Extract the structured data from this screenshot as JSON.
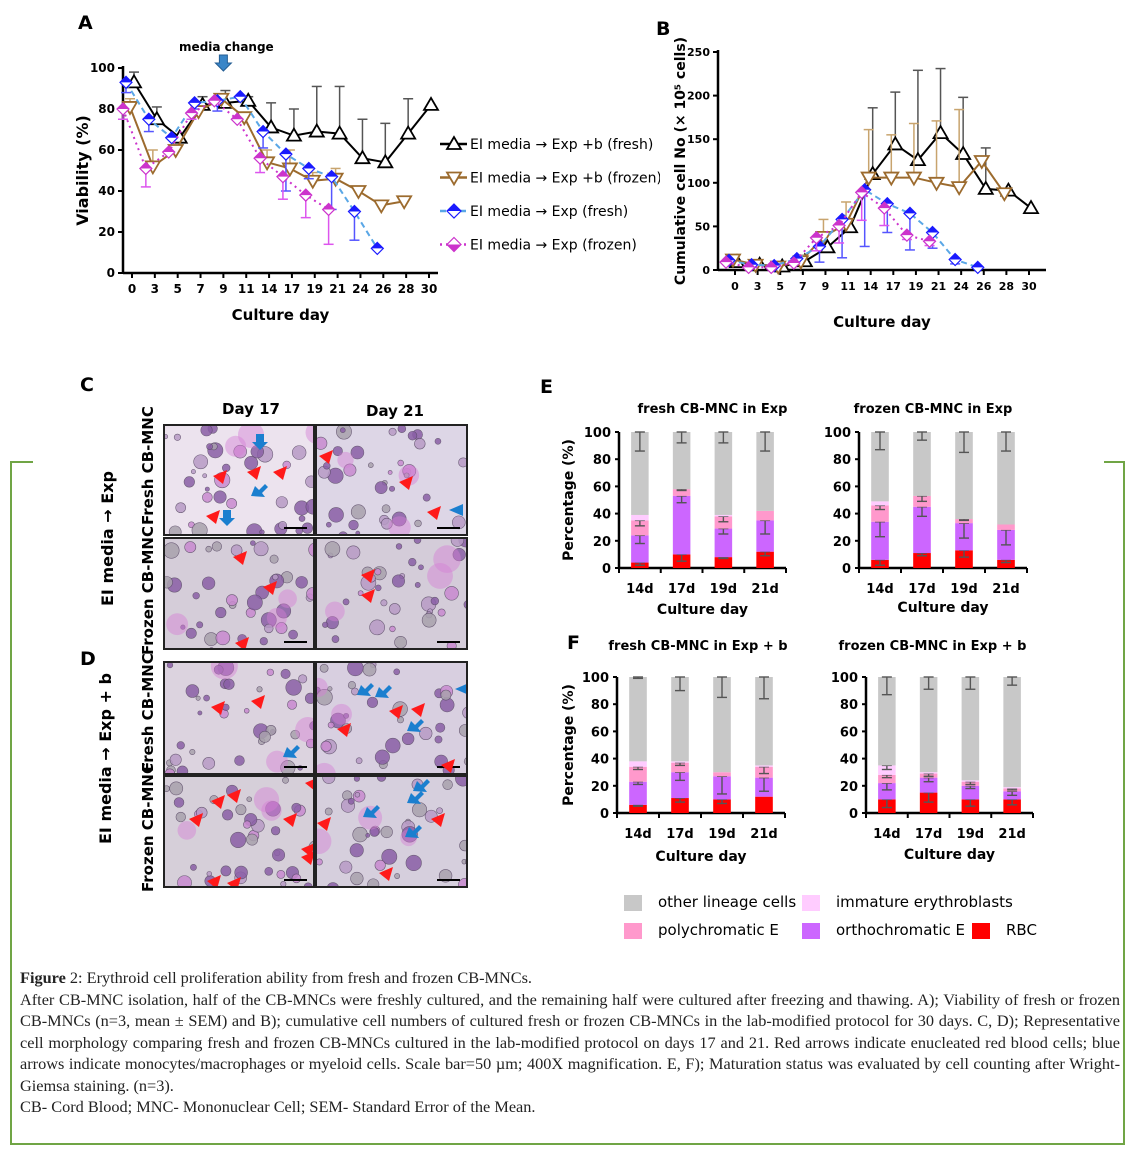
{
  "panels": {
    "A": {
      "letter": "A"
    },
    "B": {
      "letter": "B"
    },
    "C": {
      "letter": "C"
    },
    "D": {
      "letter": "D"
    },
    "E": {
      "letter": "E"
    },
    "F": {
      "letter": "F"
    }
  },
  "micrographs": {
    "col_labels": [
      "Day 17",
      "Day 21"
    ],
    "C_group": "EI media → Exp",
    "D_group": "EI media → Exp + b",
    "row_labels": [
      "Fresh CB-MNC",
      "Frozen CB-MNC",
      "Fresh CB-MNC",
      "Frozen CB-MNC"
    ]
  },
  "legend_lineage": [
    {
      "label": "other lineage cells",
      "color": "#c8c8c8"
    },
    {
      "label": "immature erythroblasts",
      "color": "#ffccff"
    },
    {
      "label": "polychromatic E",
      "color": "#ff99cc"
    },
    {
      "label": "orthochromatic E",
      "color": "#cc66ff"
    },
    {
      "label": "RBC",
      "color": "#ff0000"
    }
  ],
  "chart_data": [
    {
      "id": "A",
      "type": "line",
      "title": "",
      "annotation": "media change",
      "annotation_x": 9,
      "xlabel": "Culture day",
      "ylabel": "Viability (%)",
      "x_ticks": [
        0,
        3,
        5,
        7,
        9,
        11,
        14,
        17,
        19,
        21,
        24,
        26,
        28,
        30
      ],
      "ylim": [
        0,
        100
      ],
      "y_ticks": [
        0,
        20,
        40,
        60,
        80,
        100
      ],
      "legend_position": "right",
      "series": [
        {
          "name": "EI media → Exp +b (fresh)",
          "color": "#000000",
          "marker": "triangle-up",
          "dash": "solid",
          "values": [
            93,
            75,
            66,
            82,
            83,
            84,
            71,
            67,
            69,
            68,
            56,
            54,
            68,
            82
          ],
          "err": [
            5,
            6,
            0,
            4,
            6,
            2,
            12,
            13,
            22,
            23,
            19,
            19,
            17,
            0
          ]
        },
        {
          "name": "EI media → Exp +b (frozen)",
          "color": "#9c6b2e",
          "marker": "triangle-down",
          "dash": "solid",
          "values": [
            81,
            52,
            60,
            79,
            85,
            76,
            54,
            51,
            45,
            46,
            40,
            33,
            35,
            null
          ],
          "err": [
            4,
            8,
            0,
            0,
            0,
            0,
            6,
            9,
            4,
            5,
            0,
            0,
            0,
            null
          ]
        },
        {
          "name": "EI media → Exp (fresh)",
          "color": "#1a1aff",
          "line_color": "#5aa7e6",
          "marker": "diamond-half",
          "dash": "dashed",
          "values": [
            93,
            75,
            66,
            83,
            84,
            86,
            69,
            58,
            51,
            47,
            30,
            12,
            null,
            null
          ],
          "err": [
            5,
            6,
            0,
            3,
            5,
            0,
            8,
            18,
            5,
            16,
            14,
            0,
            null,
            null
          ]
        },
        {
          "name": "EI media → Exp (frozen)",
          "color": "#cc33cc",
          "marker": "diamond-half",
          "dash": "dotted",
          "values": [
            80,
            51,
            59,
            78,
            84,
            75,
            56,
            47,
            38,
            31,
            null,
            null,
            null,
            null
          ],
          "err": [
            5,
            9,
            0,
            3,
            0,
            0,
            7,
            11,
            11,
            17,
            null,
            null,
            null,
            null
          ]
        }
      ]
    },
    {
      "id": "B",
      "type": "line",
      "title": "",
      "xlabel": "Culture day",
      "ylabel": "Cumulative cell No (× 10⁵ cells)",
      "x_ticks": [
        0,
        3,
        5,
        7,
        9,
        11,
        14,
        17,
        19,
        21,
        24,
        26,
        28,
        30
      ],
      "ylim": [
        0,
        250
      ],
      "y_ticks": [
        0,
        50,
        100,
        150,
        200,
        250
      ],
      "series": [
        {
          "name": "EI media → Exp +b (fresh)",
          "color": "#000000",
          "marker": "triangle-up",
          "dash": "solid",
          "values": [
            9,
            6,
            4,
            10,
            26,
            49,
            110,
            144,
            126,
            157,
            133,
            93,
            91,
            71
          ],
          "err": [
            0,
            0,
            0,
            0,
            0,
            0,
            76,
            60,
            103,
            74,
            65,
            47,
            0,
            0
          ]
        },
        {
          "name": "EI media → Exp +b (frozen)",
          "color": "#9c6b2e",
          "marker": "triangle-down",
          "dash": "solid",
          "values": [
            12,
            6,
            4,
            10,
            38,
            53,
            106,
            106,
            106,
            100,
            95,
            125,
            88,
            null
          ],
          "err": [
            0,
            0,
            0,
            7,
            20,
            25,
            55,
            49,
            62,
            71,
            89,
            5,
            0,
            null
          ]
        },
        {
          "name": "EI media → Exp (fresh)",
          "color": "#1a1aff",
          "line_color": "#5aa7e6",
          "marker": "diamond-half",
          "dash": "dashed",
          "values": [
            11,
            6,
            5,
            13,
            27,
            58,
            92,
            76,
            65,
            43,
            12,
            3,
            null,
            null
          ],
          "err": [
            0,
            0,
            0,
            0,
            18,
            44,
            65,
            33,
            42,
            18,
            5,
            0,
            null,
            null
          ]
        },
        {
          "name": "EI media → Exp (frozen)",
          "color": "#cc33cc",
          "marker": "diamond-half",
          "dash": "dotted",
          "values": [
            9,
            3,
            3,
            8,
            37,
            51,
            89,
            71,
            40,
            33,
            null,
            null,
            null,
            null
          ],
          "err": [
            0,
            0,
            0,
            0,
            15,
            20,
            32,
            20,
            5,
            5,
            null,
            null,
            null,
            null
          ]
        }
      ]
    },
    {
      "id": "E1",
      "type": "bar",
      "stacked": true,
      "title": "fresh CB-MNC in Exp",
      "xlabel": "Culture day",
      "ylabel": "Percentage (%)",
      "categories": [
        "14d",
        "17d",
        "19d",
        "21d"
      ],
      "ylim": [
        0,
        100
      ],
      "y_ticks": [
        0,
        20,
        40,
        60,
        80,
        100
      ],
      "series": [
        {
          "name": "RBC",
          "values": [
            4,
            10,
            8,
            12
          ],
          "err": [
            2,
            5,
            1,
            3
          ]
        },
        {
          "name": "orthochromatic E",
          "values": [
            20,
            43,
            21,
            23
          ],
          "err": [
            6,
            5,
            4,
            10
          ]
        },
        {
          "name": "polychromatic E",
          "values": [
            11,
            5,
            9,
            7
          ],
          "err": [
            4,
            1,
            4,
            0
          ]
        },
        {
          "name": "immature erythroblasts",
          "values": [
            4,
            0,
            1,
            0
          ],
          "err": [
            0,
            0,
            0,
            0
          ]
        },
        {
          "name": "other lineage cells",
          "values": [
            61,
            42,
            61,
            58
          ],
          "err": [
            14,
            8,
            8,
            14
          ]
        }
      ]
    },
    {
      "id": "E2",
      "type": "bar",
      "stacked": true,
      "title": "frozen CB-MNC in Exp",
      "xlabel": "Culture day",
      "ylabel": "",
      "categories": [
        "14d",
        "17d",
        "19d",
        "21d"
      ],
      "ylim": [
        0,
        100
      ],
      "y_ticks": [
        0,
        20,
        40,
        60,
        80,
        100
      ],
      "series": [
        {
          "name": "RBC",
          "values": [
            6,
            11,
            13,
            6
          ],
          "err": [
            4,
            2,
            5,
            2
          ]
        },
        {
          "name": "orthochromatic E",
          "values": [
            28,
            34,
            20,
            22
          ],
          "err": [
            11,
            7,
            11,
            11
          ]
        },
        {
          "name": "polychromatic E",
          "values": [
            12,
            8,
            3,
            4
          ],
          "err": [
            3,
            4,
            1,
            0
          ]
        },
        {
          "name": "immature erythroblasts",
          "values": [
            3,
            0,
            0,
            0
          ],
          "err": [
            0,
            0,
            0,
            0
          ]
        },
        {
          "name": "other lineage cells",
          "values": [
            51,
            47,
            64,
            68
          ],
          "err": [
            13,
            6,
            15,
            14
          ]
        }
      ]
    },
    {
      "id": "F1",
      "type": "bar",
      "stacked": true,
      "title": "fresh CB-MNC in Exp + b",
      "xlabel": "Culture day",
      "ylabel": "Percentage (%)",
      "categories": [
        "14d",
        "17d",
        "19d",
        "21d"
      ],
      "ylim": [
        0,
        100
      ],
      "y_ticks": [
        0,
        20,
        40,
        60,
        80,
        100
      ],
      "series": [
        {
          "name": "RBC",
          "values": [
            6,
            11,
            10,
            12
          ],
          "err": [
            1,
            3,
            3,
            0
          ]
        },
        {
          "name": "orthochromatic E",
          "values": [
            17,
            19,
            17,
            14
          ],
          "err": [
            2,
            6,
            13,
            10
          ]
        },
        {
          "name": "polychromatic E",
          "values": [
            11,
            7,
            3,
            8
          ],
          "err": [
            2,
            2,
            0,
            5
          ]
        },
        {
          "name": "immature erythroblasts",
          "values": [
            4,
            1,
            0,
            1
          ],
          "err": [
            0,
            0,
            0,
            0
          ]
        },
        {
          "name": "other lineage cells",
          "values": [
            62,
            62,
            70,
            65
          ],
          "err": [
            1,
            10,
            15,
            16
          ]
        }
      ]
    },
    {
      "id": "F2",
      "type": "bar",
      "stacked": true,
      "title": "frozen CB-MNC in Exp + b",
      "xlabel": "Culture day",
      "ylabel": "",
      "categories": [
        "14d",
        "17d",
        "19d",
        "21d"
      ],
      "ylim": [
        0,
        100
      ],
      "y_ticks": [
        0,
        20,
        40,
        60,
        80,
        100
      ],
      "series": [
        {
          "name": "RBC",
          "values": [
            10,
            15,
            10,
            10
          ],
          "err": [
            6,
            7,
            5,
            4
          ]
        },
        {
          "name": "orthochromatic E",
          "values": [
            12,
            11,
            10,
            6
          ],
          "err": [
            5,
            3,
            2,
            3
          ]
        },
        {
          "name": "polychromatic E",
          "values": [
            6,
            3,
            3,
            2
          ],
          "err": [
            2,
            2,
            2,
            1
          ]
        },
        {
          "name": "immature erythroblasts",
          "values": [
            7,
            1,
            1,
            1
          ],
          "err": [
            3,
            0,
            0,
            0
          ]
        },
        {
          "name": "other lineage cells",
          "values": [
            65,
            70,
            76,
            81
          ],
          "err": [
            13,
            9,
            9,
            6
          ]
        }
      ]
    }
  ],
  "caption": {
    "figure_label": "Figure",
    "figure_number": " 2",
    "title": ": Erythroid cell proliferation ability from fresh and frozen CB-MNCs.",
    "body": "After CB-MNC isolation, half of the CB-MNCs were freshly cultured, and the remaining half were cultured after freezing and thawing. A); Viability of fresh or frozen CB-MNCs (n=3, mean ± SEM) and B); cumulative cell numbers of cultured fresh or frozen CB-MNCs in the lab-modified protocol for 30 days. C, D); Representative cell morphology comparing fresh and frozen CB-MNCs cultured in the lab-modified protocol on days 17 and 21. Red arrows indicate enucleated red blood cells; blue arrows indicate monocytes/macrophages or myeloid cells. Scale bar=50 µm; 400X magnification. E, F); Maturation status was evaluated by cell counting after Wright-Giemsa staining. (n=3).",
    "abbrev": "CB- Cord Blood; MNC- Mononuclear Cell; SEM- Standard Error of the Mean."
  }
}
